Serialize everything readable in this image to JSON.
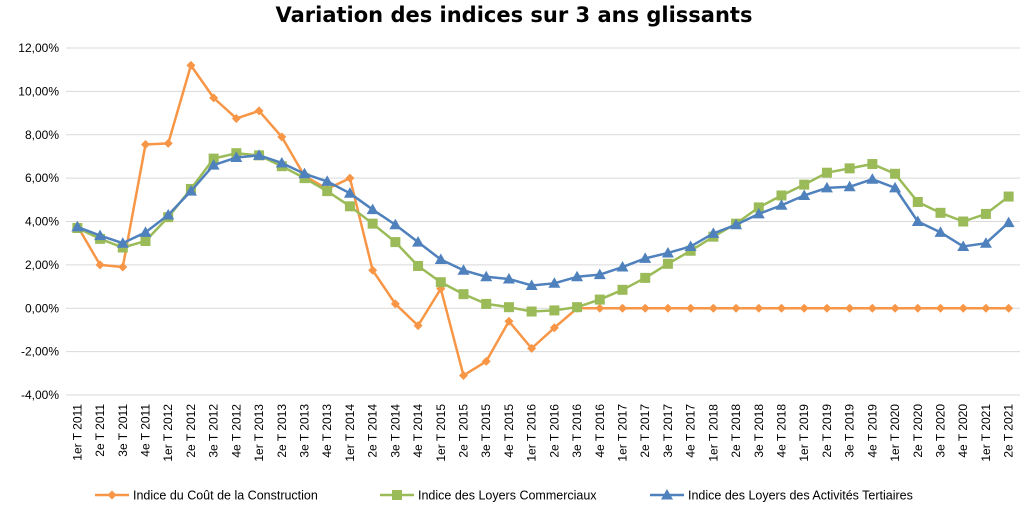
{
  "chart_data": {
    "type": "line",
    "title": "Variation des indices sur 3 ans glissants",
    "xlabel": "",
    "ylabel": "",
    "ylim": [
      -0.04,
      0.12
    ],
    "ytick_step": 0.02,
    "ytick_format": "percent-2dec-fr",
    "ytick_labels": [
      "-4,00%",
      "-2,00%",
      "0,00%",
      "2,00%",
      "4,00%",
      "6,00%",
      "8,00%",
      "10,00%",
      "12,00%"
    ],
    "grid": true,
    "legend_position": "bottom",
    "categories": [
      "1er T 2011",
      "2e T 2011",
      "3e T 2011",
      "4e T 2011",
      "1er T 2012",
      "2e T 2012",
      "3e T 2012",
      "4e T 2012",
      "1er T 2013",
      "2e T 2013",
      "3e T 2013",
      "4e T 2013",
      "1er T 2014",
      "2e T 2014",
      "3e T 2014",
      "4e T 2014",
      "1er T 2015",
      "2e T 2015",
      "3e T 2015",
      "4e T 2015",
      "1er T 2016",
      "2e T 2016",
      "3e T 2016",
      "4e T 2016",
      "1er T 2017",
      "2e T 2017",
      "3e T 2017",
      "4e T 2017",
      "1er T 2018",
      "2e T 2018",
      "3e T 2018",
      "4e T 2018",
      "1er T 2019",
      "2e T 2019",
      "3e T 2019",
      "4e T 2019",
      "1er T 2020",
      "2e T 2020",
      "3e T 2020",
      "4e T 2020",
      "1er T 2021",
      "2e T 2021"
    ],
    "series": [
      {
        "name": "Indice du Coût de la Construction",
        "color": "#f79646",
        "marker": "diamond",
        "values": [
          0.038,
          0.02,
          0.019,
          0.0755,
          0.076,
          0.112,
          0.097,
          0.0875,
          0.091,
          0.079,
          0.061,
          0.055,
          0.06,
          0.0175,
          0.002,
          -0.008,
          0.009,
          -0.031,
          -0.0245,
          -0.006,
          -0.0185,
          -0.009,
          0.0,
          0.0,
          0.0,
          0.0,
          0.0,
          0.0,
          0.0,
          0.0,
          0.0,
          0.0,
          0.0,
          0.0,
          0.0,
          0.0,
          0.0,
          0.0,
          0.0,
          0.0,
          0.0,
          0.0
        ]
      },
      {
        "name": "Indice des Loyers Commerciaux",
        "color": "#9bbb59",
        "marker": "square",
        "values": [
          0.037,
          0.032,
          0.028,
          0.031,
          0.042,
          0.055,
          0.069,
          0.0715,
          0.0705,
          0.0655,
          0.06,
          0.054,
          0.047,
          0.039,
          0.0305,
          0.0195,
          0.012,
          0.0065,
          0.002,
          0.0005,
          -0.0015,
          -0.001,
          0.0005,
          0.004,
          0.0085,
          0.014,
          0.0205,
          0.0265,
          0.033,
          0.039,
          0.0465,
          0.052,
          0.057,
          0.0625,
          0.0645,
          0.0665,
          0.062,
          0.049,
          0.044,
          0.04,
          0.0435,
          0.0515
        ]
      },
      {
        "name": "Indice des Loyers des Activités Tertiaires",
        "color": "#4f81bd",
        "marker": "triangle",
        "values": [
          0.0375,
          0.0335,
          0.03,
          0.035,
          0.043,
          0.054,
          0.066,
          0.0695,
          0.0705,
          0.067,
          0.062,
          0.0585,
          0.053,
          0.0455,
          0.0385,
          0.0305,
          0.0225,
          0.0175,
          0.0145,
          0.0135,
          0.0105,
          0.0115,
          0.0145,
          0.0155,
          0.019,
          0.023,
          0.0255,
          0.0285,
          0.0345,
          0.0385,
          0.0435,
          0.0475,
          0.052,
          0.0555,
          0.056,
          0.0595,
          0.0555,
          0.04,
          0.035,
          0.0285,
          0.03,
          0.0395
        ]
      }
    ]
  }
}
